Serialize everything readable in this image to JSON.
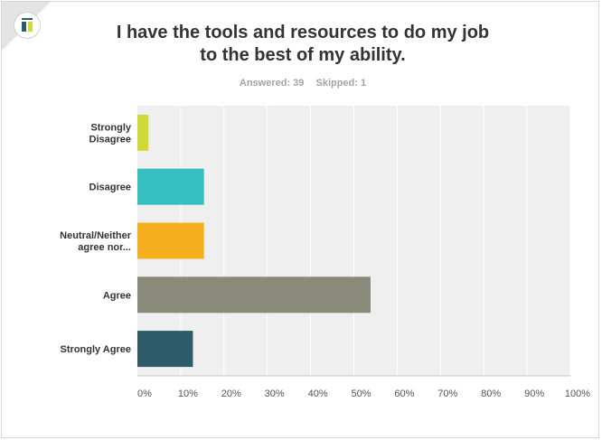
{
  "title_line1": "I have the tools and resources to do my job",
  "title_line2": "to the best of my ability.",
  "answered": "Answered: 39",
  "skipped": "Skipped: 1",
  "chart_data": {
    "type": "bar",
    "orientation": "horizontal",
    "categories": [
      [
        "Strongly",
        "Disagree"
      ],
      [
        "Disagree"
      ],
      [
        "Neutral/Neither",
        "agree nor..."
      ],
      [
        "Agree"
      ],
      [
        "Strongly Agree"
      ]
    ],
    "values": [
      2.56,
      15.38,
      15.38,
      53.85,
      12.82
    ],
    "colors": [
      "#cfd937",
      "#36bfc0",
      "#f5ae1e",
      "#898a7a",
      "#2d5b6a"
    ],
    "xlim": [
      0,
      100
    ],
    "xticks": [
      "0%",
      "10%",
      "20%",
      "30%",
      "40%",
      "50%",
      "60%",
      "70%",
      "80%",
      "90%",
      "100%"
    ],
    "grid": true
  }
}
